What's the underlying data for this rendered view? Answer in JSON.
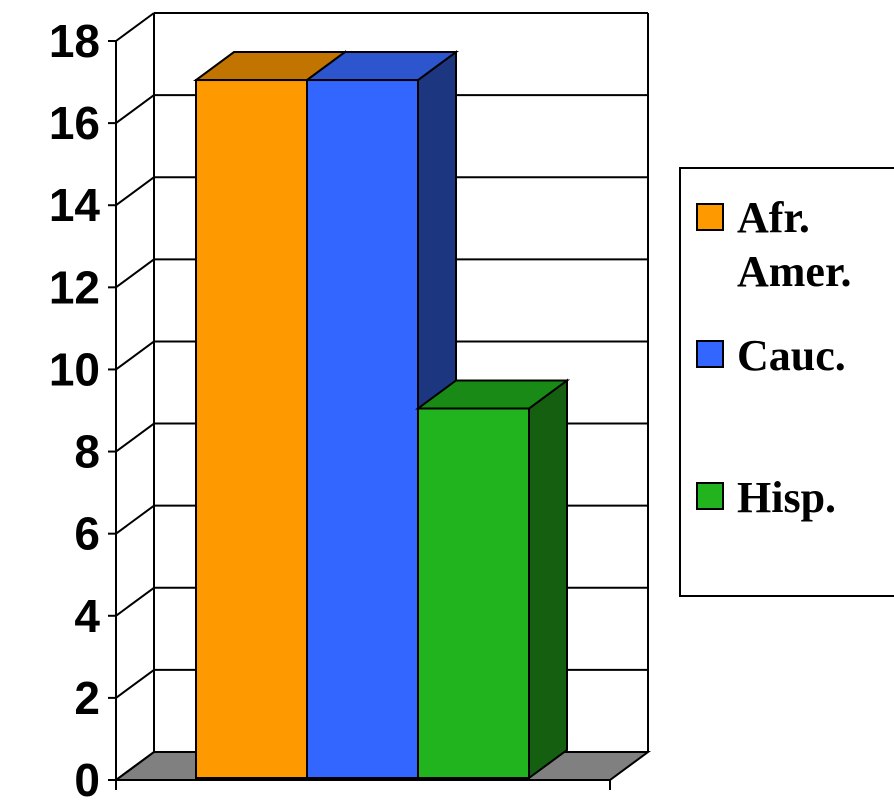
{
  "chart_data": {
    "type": "bar",
    "categories": [
      ""
    ],
    "series": [
      {
        "name": "Afr. Amer.",
        "values": [
          17
        ]
      },
      {
        "name": "Cauc.",
        "values": [
          17
        ]
      },
      {
        "name": "Hisp.",
        "values": [
          9
        ]
      }
    ],
    "ylim": [
      0,
      18
    ],
    "yticks": [
      0,
      2,
      4,
      6,
      8,
      10,
      12,
      14,
      16,
      18
    ],
    "grid": true,
    "legend_position": "right",
    "colors": {
      "series_front": [
        "#FF9900",
        "#3366FF",
        "#22B41E"
      ],
      "series_top": [
        "#C27400",
        "#2C55CE",
        "#1A8A16"
      ],
      "series_side": [
        "#8A5400",
        "#1C3680",
        "#145F10"
      ],
      "floor": "#808080",
      "grid": "#000000"
    }
  },
  "legend": {
    "items": [
      {
        "lines": [
          "Afr.",
          "Amer."
        ]
      },
      {
        "lines": [
          "Cauc."
        ]
      },
      {
        "lines": [
          "Hisp."
        ]
      }
    ]
  }
}
